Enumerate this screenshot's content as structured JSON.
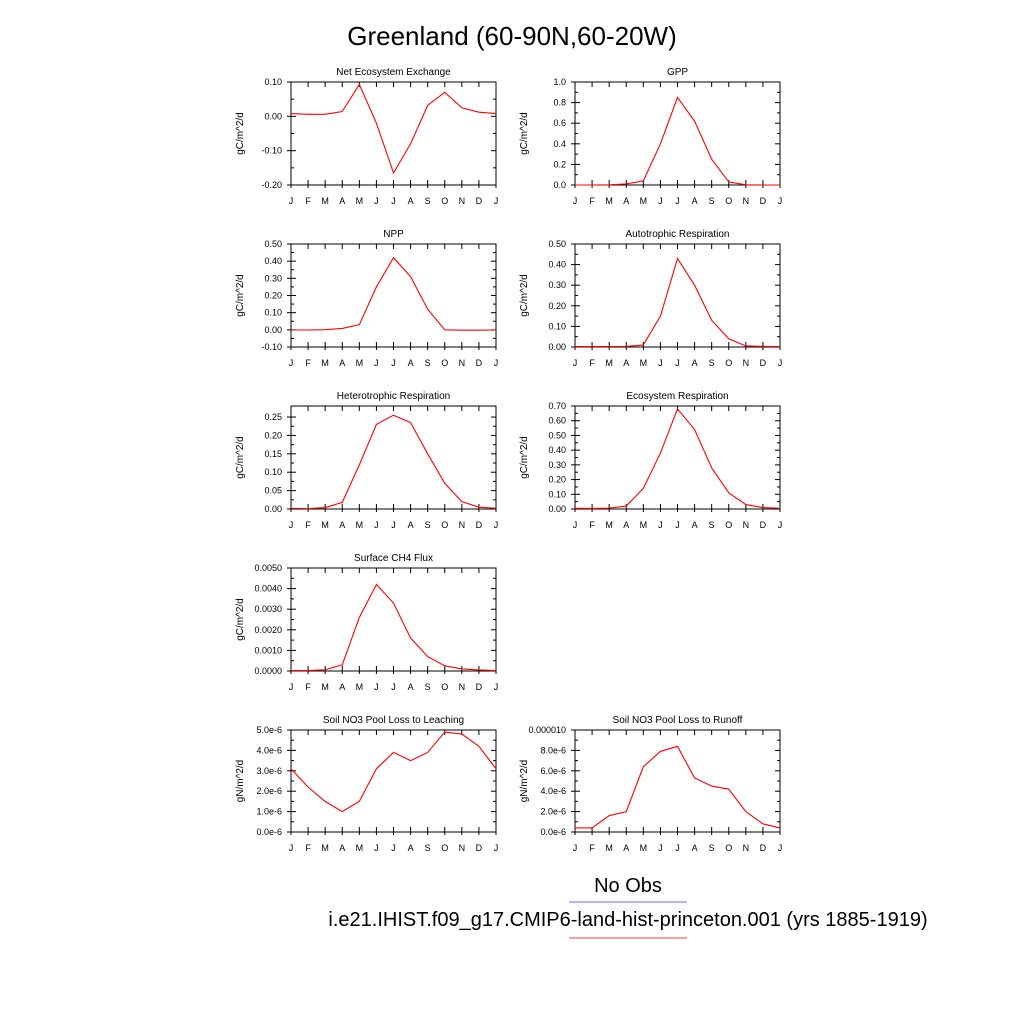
{
  "figure": {
    "title": "Greenland (60-90N,60-20W)",
    "legend": {
      "items": [
        {
          "label": "No Obs",
          "color": "#6b6bff"
        },
        {
          "label": "i.e21.IHIST.f09_g17.CMIP6-land-hist-princeton.001 (yrs 1885-1919)",
          "color": "#ff3b3b"
        }
      ]
    }
  },
  "chart_data": [
    {
      "type": "line",
      "title": "Net Ecosystem Exchange",
      "ylabel": "gC/m^2/d",
      "categories": [
        "J",
        "F",
        "M",
        "A",
        "M",
        "J",
        "J",
        "A",
        "S",
        "O",
        "N",
        "D",
        "J"
      ],
      "ylim": [
        -0.2,
        0.1
      ],
      "yticks": [
        "0.10",
        "0.00",
        "-0.10",
        "-0.20"
      ],
      "ytick_values": [
        0.1,
        0.0,
        -0.1,
        -0.2
      ],
      "grid": false,
      "series": [
        {
          "color": "#ff0000",
          "values": [
            0.008,
            0.006,
            0.006,
            0.014,
            0.093,
            -0.02,
            -0.165,
            -0.08,
            0.032,
            0.07,
            0.025,
            0.012,
            0.008
          ]
        }
      ]
    },
    {
      "type": "line",
      "title": "GPP",
      "ylabel": "gC/m^2/d",
      "categories": [
        "J",
        "F",
        "M",
        "A",
        "M",
        "J",
        "J",
        "A",
        "S",
        "O",
        "N",
        "D",
        "J"
      ],
      "ylim": [
        0,
        1.0
      ],
      "yticks": [
        "1.0",
        "0.8",
        "0.6",
        "0.4",
        "0.2",
        "0.0"
      ],
      "ytick_values": [
        1.0,
        0.8,
        0.6,
        0.4,
        0.2,
        0.0
      ],
      "grid": false,
      "series": [
        {
          "color": "#ff0000",
          "values": [
            0.0,
            0.0,
            0.002,
            0.01,
            0.04,
            0.4,
            0.85,
            0.62,
            0.25,
            0.03,
            0.002,
            0.0,
            0.0
          ]
        }
      ]
    },
    {
      "type": "line",
      "title": "NPP",
      "ylabel": "gC/m^2/d",
      "categories": [
        "J",
        "F",
        "M",
        "A",
        "M",
        "J",
        "J",
        "A",
        "S",
        "O",
        "N",
        "D",
        "J"
      ],
      "ylim": [
        -0.1,
        0.5
      ],
      "yticks": [
        "0.50",
        "0.40",
        "0.30",
        "0.20",
        "0.10",
        "0.00",
        "-0.10"
      ],
      "ytick_values": [
        0.5,
        0.4,
        0.3,
        0.2,
        0.1,
        0.0,
        -0.1
      ],
      "grid": false,
      "series": [
        {
          "color": "#ff0000",
          "values": [
            -0.001,
            -0.001,
            0.001,
            0.008,
            0.03,
            0.25,
            0.42,
            0.31,
            0.12,
            0.0,
            -0.002,
            -0.002,
            -0.001
          ]
        }
      ]
    },
    {
      "type": "line",
      "title": "Autotrophic Respiration",
      "ylabel": "gC/m^2/d",
      "categories": [
        "J",
        "F",
        "M",
        "A",
        "M",
        "J",
        "J",
        "A",
        "S",
        "O",
        "N",
        "D",
        "J"
      ],
      "ylim": [
        0,
        0.5
      ],
      "yticks": [
        "0.50",
        "0.40",
        "0.30",
        "0.20",
        "0.10",
        "0.00"
      ],
      "ytick_values": [
        0.5,
        0.4,
        0.3,
        0.2,
        0.1,
        0.0
      ],
      "grid": false,
      "series": [
        {
          "color": "#ff0000",
          "values": [
            0.002,
            0.002,
            0.002,
            0.003,
            0.01,
            0.15,
            0.43,
            0.3,
            0.13,
            0.04,
            0.005,
            0.003,
            0.002
          ]
        }
      ]
    },
    {
      "type": "line",
      "title": "Heterotrophic Respiration",
      "ylabel": "gC/m^2/d",
      "categories": [
        "J",
        "F",
        "M",
        "A",
        "M",
        "J",
        "J",
        "A",
        "S",
        "O",
        "N",
        "D",
        "J"
      ],
      "ylim": [
        0,
        0.28
      ],
      "yticks": [
        "0.25",
        "0.20",
        "0.15",
        "0.10",
        "0.05",
        "0.00"
      ],
      "ytick_values": [
        0.25,
        0.2,
        0.15,
        0.1,
        0.05,
        0.0
      ],
      "grid": false,
      "series": [
        {
          "color": "#ff0000",
          "values": [
            0.002,
            0.001,
            0.004,
            0.018,
            0.12,
            0.23,
            0.255,
            0.235,
            0.15,
            0.07,
            0.02,
            0.005,
            0.002
          ]
        }
      ]
    },
    {
      "type": "line",
      "title": "Ecosystem Respiration",
      "ylabel": "gC/m^2/d",
      "categories": [
        "J",
        "F",
        "M",
        "A",
        "M",
        "J",
        "J",
        "A",
        "S",
        "O",
        "N",
        "D",
        "J"
      ],
      "ylim": [
        0,
        0.7
      ],
      "yticks": [
        "0.70",
        "0.60",
        "0.50",
        "0.40",
        "0.30",
        "0.20",
        "0.10",
        "0.00"
      ],
      "ytick_values": [
        0.7,
        0.6,
        0.5,
        0.4,
        0.3,
        0.2,
        0.1,
        0.0
      ],
      "grid": false,
      "series": [
        {
          "color": "#ff0000",
          "values": [
            0.005,
            0.004,
            0.006,
            0.02,
            0.14,
            0.38,
            0.68,
            0.54,
            0.28,
            0.11,
            0.03,
            0.01,
            0.005
          ]
        }
      ]
    },
    {
      "type": "line",
      "title": "Surface CH4 Flux",
      "ylabel": "gC/m^2/d",
      "categories": [
        "J",
        "F",
        "M",
        "A",
        "M",
        "J",
        "J",
        "A",
        "S",
        "O",
        "N",
        "D",
        "J"
      ],
      "ylim": [
        0,
        0.005
      ],
      "yticks": [
        "0.0050",
        "0.0040",
        "0.0030",
        "0.0020",
        "0.0010",
        "0.0000"
      ],
      "ytick_values": [
        0.005,
        0.004,
        0.003,
        0.002,
        0.001,
        0.0
      ],
      "grid": false,
      "series": [
        {
          "color": "#ff0000",
          "values": [
            2e-05,
            2e-05,
            6e-05,
            0.0003,
            0.0026,
            0.0042,
            0.0033,
            0.0016,
            0.0007,
            0.00025,
            0.0001,
            5e-05,
            2e-05
          ]
        }
      ]
    },
    {
      "type": "line",
      "title": "Soil NO3 Pool Loss to Leaching",
      "ylabel": "gN/m^2/d",
      "categories": [
        "J",
        "F",
        "M",
        "A",
        "M",
        "J",
        "J",
        "A",
        "S",
        "O",
        "N",
        "D",
        "J"
      ],
      "ylim": [
        0,
        5e-06
      ],
      "yticks": [
        "5.0e-6",
        "4.0e-6",
        "3.0e-6",
        "2.0e-6",
        "1.0e-6",
        "0.0e-6"
      ],
      "ytick_values": [
        5e-06,
        4e-06,
        3e-06,
        2e-06,
        1e-06,
        0.0
      ],
      "grid": false,
      "series": [
        {
          "color": "#ff0000",
          "values": [
            3.1e-06,
            2.2e-06,
            1.5e-06,
            1e-06,
            1.5e-06,
            3.1e-06,
            3.9e-06,
            3.5e-06,
            3.9e-06,
            4.9e-06,
            4.8e-06,
            4.2e-06,
            3.1e-06
          ]
        }
      ]
    },
    {
      "type": "line",
      "title": "Soil NO3 Pool Loss to Runoff",
      "ylabel": "gN/m^2/d",
      "categories": [
        "J",
        "F",
        "M",
        "A",
        "M",
        "J",
        "J",
        "A",
        "S",
        "O",
        "N",
        "D",
        "J"
      ],
      "ylim": [
        0,
        1e-05
      ],
      "yticks": [
        "0.000010",
        "8.0e-6",
        "6.0e-6",
        "4.0e-6",
        "2.0e-6",
        "0.0e-6"
      ],
      "ytick_values": [
        1e-05,
        8e-06,
        6e-06,
        4e-06,
        2e-06,
        0.0
      ],
      "grid": false,
      "series": [
        {
          "color": "#ff0000",
          "values": [
            4e-07,
            4e-07,
            1.6e-06,
            2e-06,
            6.4e-06,
            7.9e-06,
            8.4e-06,
            5.3e-06,
            4.5e-06,
            4.2e-06,
            2e-06,
            8e-07,
            4e-07
          ]
        }
      ]
    }
  ]
}
